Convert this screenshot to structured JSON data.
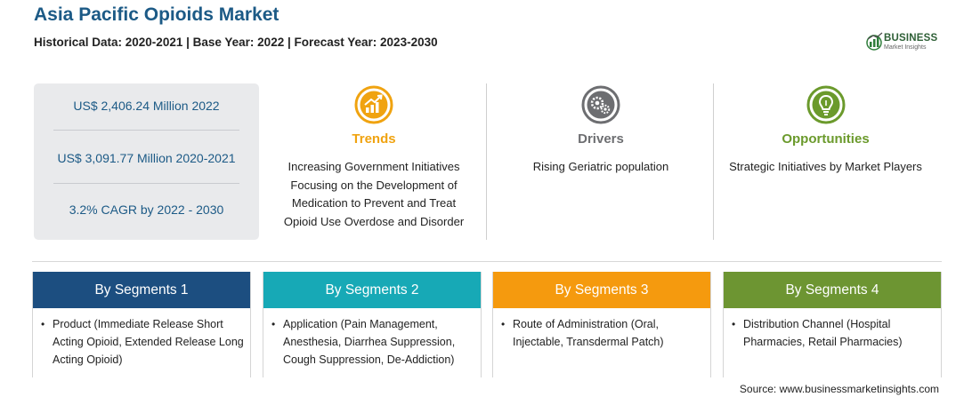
{
  "header": {
    "title": "Asia Pacific Opioids Market",
    "subtitle": "Historical Data: 2020-2021 | Base Year: 2022 | Forecast Year: 2023-2030"
  },
  "logo": {
    "name": "BUSINESS",
    "tagline": "Market Insights",
    "icon": "bar-chart-globe-icon"
  },
  "stats": [
    "US$ 2,406.24 Million 2022",
    "US$ 3,091.77 Million 2020-2021",
    "3.2% CAGR by 2022 - 2030"
  ],
  "columns": [
    {
      "heading": "Trends",
      "icon": "growth-chart-icon",
      "color": "#f0a310",
      "lines": [
        "Increasing Government Initiatives",
        "Focusing on the Development of",
        "Medication to Prevent and Treat",
        "Opioid Use Overdose and Disorder"
      ]
    },
    {
      "heading": "Drivers",
      "icon": "gears-icon",
      "color": "#6d6e71",
      "lines": [
        "Rising Geriatric population"
      ]
    },
    {
      "heading": "Opportunities",
      "icon": "lightbulb-icon",
      "color": "#6b9a2c",
      "lines": [
        "Strategic Initiatives by Market Players"
      ]
    }
  ],
  "segments": [
    {
      "title": "By Segments 1",
      "color": "#1c4e80",
      "lines": [
        "Product (Immediate Release Short",
        "Acting Opioid, Extended Release Long",
        "Acting Opioid)"
      ]
    },
    {
      "title": "By Segments 2",
      "color": "#17a9b6",
      "lines": [
        "Application (Pain Management,",
        "Anesthesia, Diarrhea Suppression,",
        "Cough Suppression, De-Addiction)"
      ]
    },
    {
      "title": "By Segments 3",
      "color": "#f59a0e",
      "lines": [
        "Route of Administration (Oral,",
        "Injectable, Transdermal Patch)"
      ]
    },
    {
      "title": "By Segments 4",
      "color": "#6d9532",
      "lines": [
        "Distribution Channel (Hospital",
        "Pharmacies, Retail Pharmacies)"
      ]
    }
  ],
  "source": "Source: www.businessmarketinsights.com"
}
